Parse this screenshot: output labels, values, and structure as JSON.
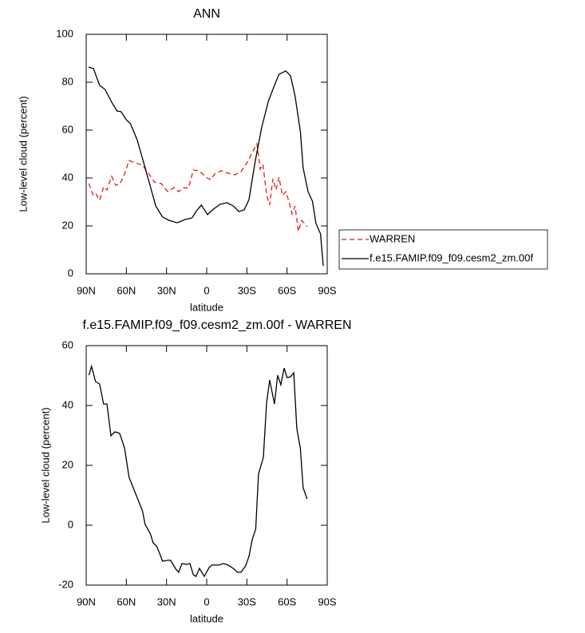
{
  "chart_data": [
    {
      "type": "line",
      "title": "ANN",
      "xlabel": "latitude",
      "ylabel": "Low-level cloud (percent)",
      "xlim": [
        90,
        -90
      ],
      "ylim": [
        0,
        100
      ],
      "xticks": [
        {
          "value": 90,
          "label": "90N"
        },
        {
          "value": 60,
          "label": "60N"
        },
        {
          "value": 30,
          "label": "30N"
        },
        0,
        {
          "value": -30,
          "label": "30S"
        },
        {
          "value": -60,
          "label": "60S"
        },
        {
          "value": -90,
          "label": "90S"
        }
      ],
      "yticks": [
        0,
        20,
        40,
        60,
        80,
        100
      ],
      "legend": "right",
      "series": [
        {
          "name": "WARREN",
          "color": "#e41a1c",
          "dash": "dashed",
          "x": [
            88,
            85,
            83,
            80,
            77,
            74.5,
            71,
            68,
            65,
            61.4,
            58,
            53,
            48,
            43.5,
            39,
            34,
            29,
            24.4,
            21,
            17,
            13.7,
            10,
            5.4,
            0.6,
            -3,
            -6.5,
            -11,
            -16,
            -21,
            -25.6,
            -30.4,
            -35,
            -37.5,
            -40,
            -42,
            -44.7,
            -47,
            -49.4,
            -51.8,
            -54,
            -56.6,
            -59,
            -61.4,
            -63.7,
            -66,
            -68.5,
            -71,
            -75
          ],
          "values": [
            37.7,
            33,
            33.7,
            30.7,
            36.3,
            35,
            40.7,
            37,
            37.3,
            41.7,
            47.3,
            46.3,
            45.3,
            42,
            38.3,
            37.7,
            34.3,
            36,
            34.3,
            36,
            35.7,
            43.3,
            43,
            40.3,
            39.3,
            42,
            43,
            42,
            41.3,
            42.7,
            46.7,
            51.7,
            54.3,
            43.7,
            45.7,
            33,
            28.7,
            39.7,
            35,
            40.3,
            32.7,
            34.3,
            30.3,
            25,
            28.3,
            17.7,
            22.3,
            19.7
          ]
        },
        {
          "name": "f.e15.FAMIP.f09_f09.cesm2_zm.00f",
          "color": "#000000",
          "dash": "solid",
          "x": [
            88.2,
            84.6,
            80,
            76,
            71,
            67,
            64,
            60,
            57,
            52,
            47,
            42,
            38,
            33,
            28,
            22,
            16,
            11,
            8,
            4,
            -0.6,
            -5,
            -10,
            -15,
            -20,
            -24,
            -28,
            -31.6,
            -36,
            -41,
            -46,
            -51,
            -54,
            -59,
            -62.6,
            -66,
            -70,
            -72,
            -75.7,
            -79,
            -81.6,
            -85,
            -87
          ],
          "values": [
            86.3,
            85.7,
            78.7,
            77,
            71.7,
            68,
            67.7,
            64.3,
            62.7,
            56,
            46.3,
            36.3,
            28.3,
            23.7,
            22.3,
            21.3,
            22.7,
            23.3,
            26,
            28.7,
            24.7,
            27,
            29,
            29.7,
            28.3,
            26,
            26.7,
            31,
            46.3,
            61,
            72,
            79.3,
            83.3,
            84.7,
            82.7,
            74.3,
            59.3,
            44.3,
            34.3,
            30.3,
            21,
            16.7,
            3.3
          ]
        }
      ]
    },
    {
      "type": "line",
      "title": "f.e15.FAMIP.f09_f09.cesm2_zm.00f - WARREN",
      "xlabel": "latitude",
      "ylabel": "Low-level cloud (percent)",
      "xlim": [
        90,
        -90
      ],
      "ylim": [
        -20,
        60
      ],
      "xticks": [
        {
          "value": 90,
          "label": "90N"
        },
        {
          "value": 60,
          "label": "60N"
        },
        {
          "value": 30,
          "label": "30N"
        },
        0,
        {
          "value": -30,
          "label": "30S"
        },
        {
          "value": -60,
          "label": "60S"
        },
        {
          "value": -90,
          "label": "90S"
        }
      ],
      "yticks": [
        -20,
        0,
        20,
        40,
        60
      ],
      "color": "#000000",
      "x": [
        88,
        86,
        83,
        80,
        77,
        74.5,
        71.5,
        68.5,
        65,
        61.4,
        58,
        53,
        48,
        46,
        42,
        40,
        37.5,
        35,
        33,
        29,
        27,
        23,
        21,
        18.5,
        15,
        12.5,
        10,
        8,
        5.4,
        1.8,
        -1.8,
        -4,
        -9,
        -12.5,
        -16,
        -19.7,
        -23,
        -25.6,
        -29,
        -31.6,
        -34,
        -36.6,
        -38.7,
        -42.3,
        -44.7,
        -47,
        -50.6,
        -53,
        -55.4,
        -57.8,
        -60,
        -62.6,
        -65,
        -67.3,
        -70,
        -72,
        -75
      ],
      "values": [
        50.1,
        53.1,
        48,
        47.2,
        40.5,
        40.5,
        29.9,
        31.2,
        30.7,
        25.9,
        16,
        10.4,
        4.8,
        0.3,
        -2.9,
        -5.9,
        -6.9,
        -9.6,
        -12,
        -11.7,
        -11.7,
        -14.7,
        -15.7,
        -12.8,
        -13.1,
        -12.8,
        -16.5,
        -17.1,
        -14.4,
        -17.1,
        -14.1,
        -13.3,
        -13.3,
        -12.8,
        -13.3,
        -14.4,
        -15.7,
        -15.7,
        -13.6,
        -10.4,
        -4.8,
        -1.3,
        17.1,
        22.7,
        40.8,
        48.5,
        40.5,
        50.1,
        46.9,
        52.5,
        49.3,
        49.6,
        50.9,
        32.3,
        25.6,
        12.5,
        8.8
      ]
    }
  ]
}
